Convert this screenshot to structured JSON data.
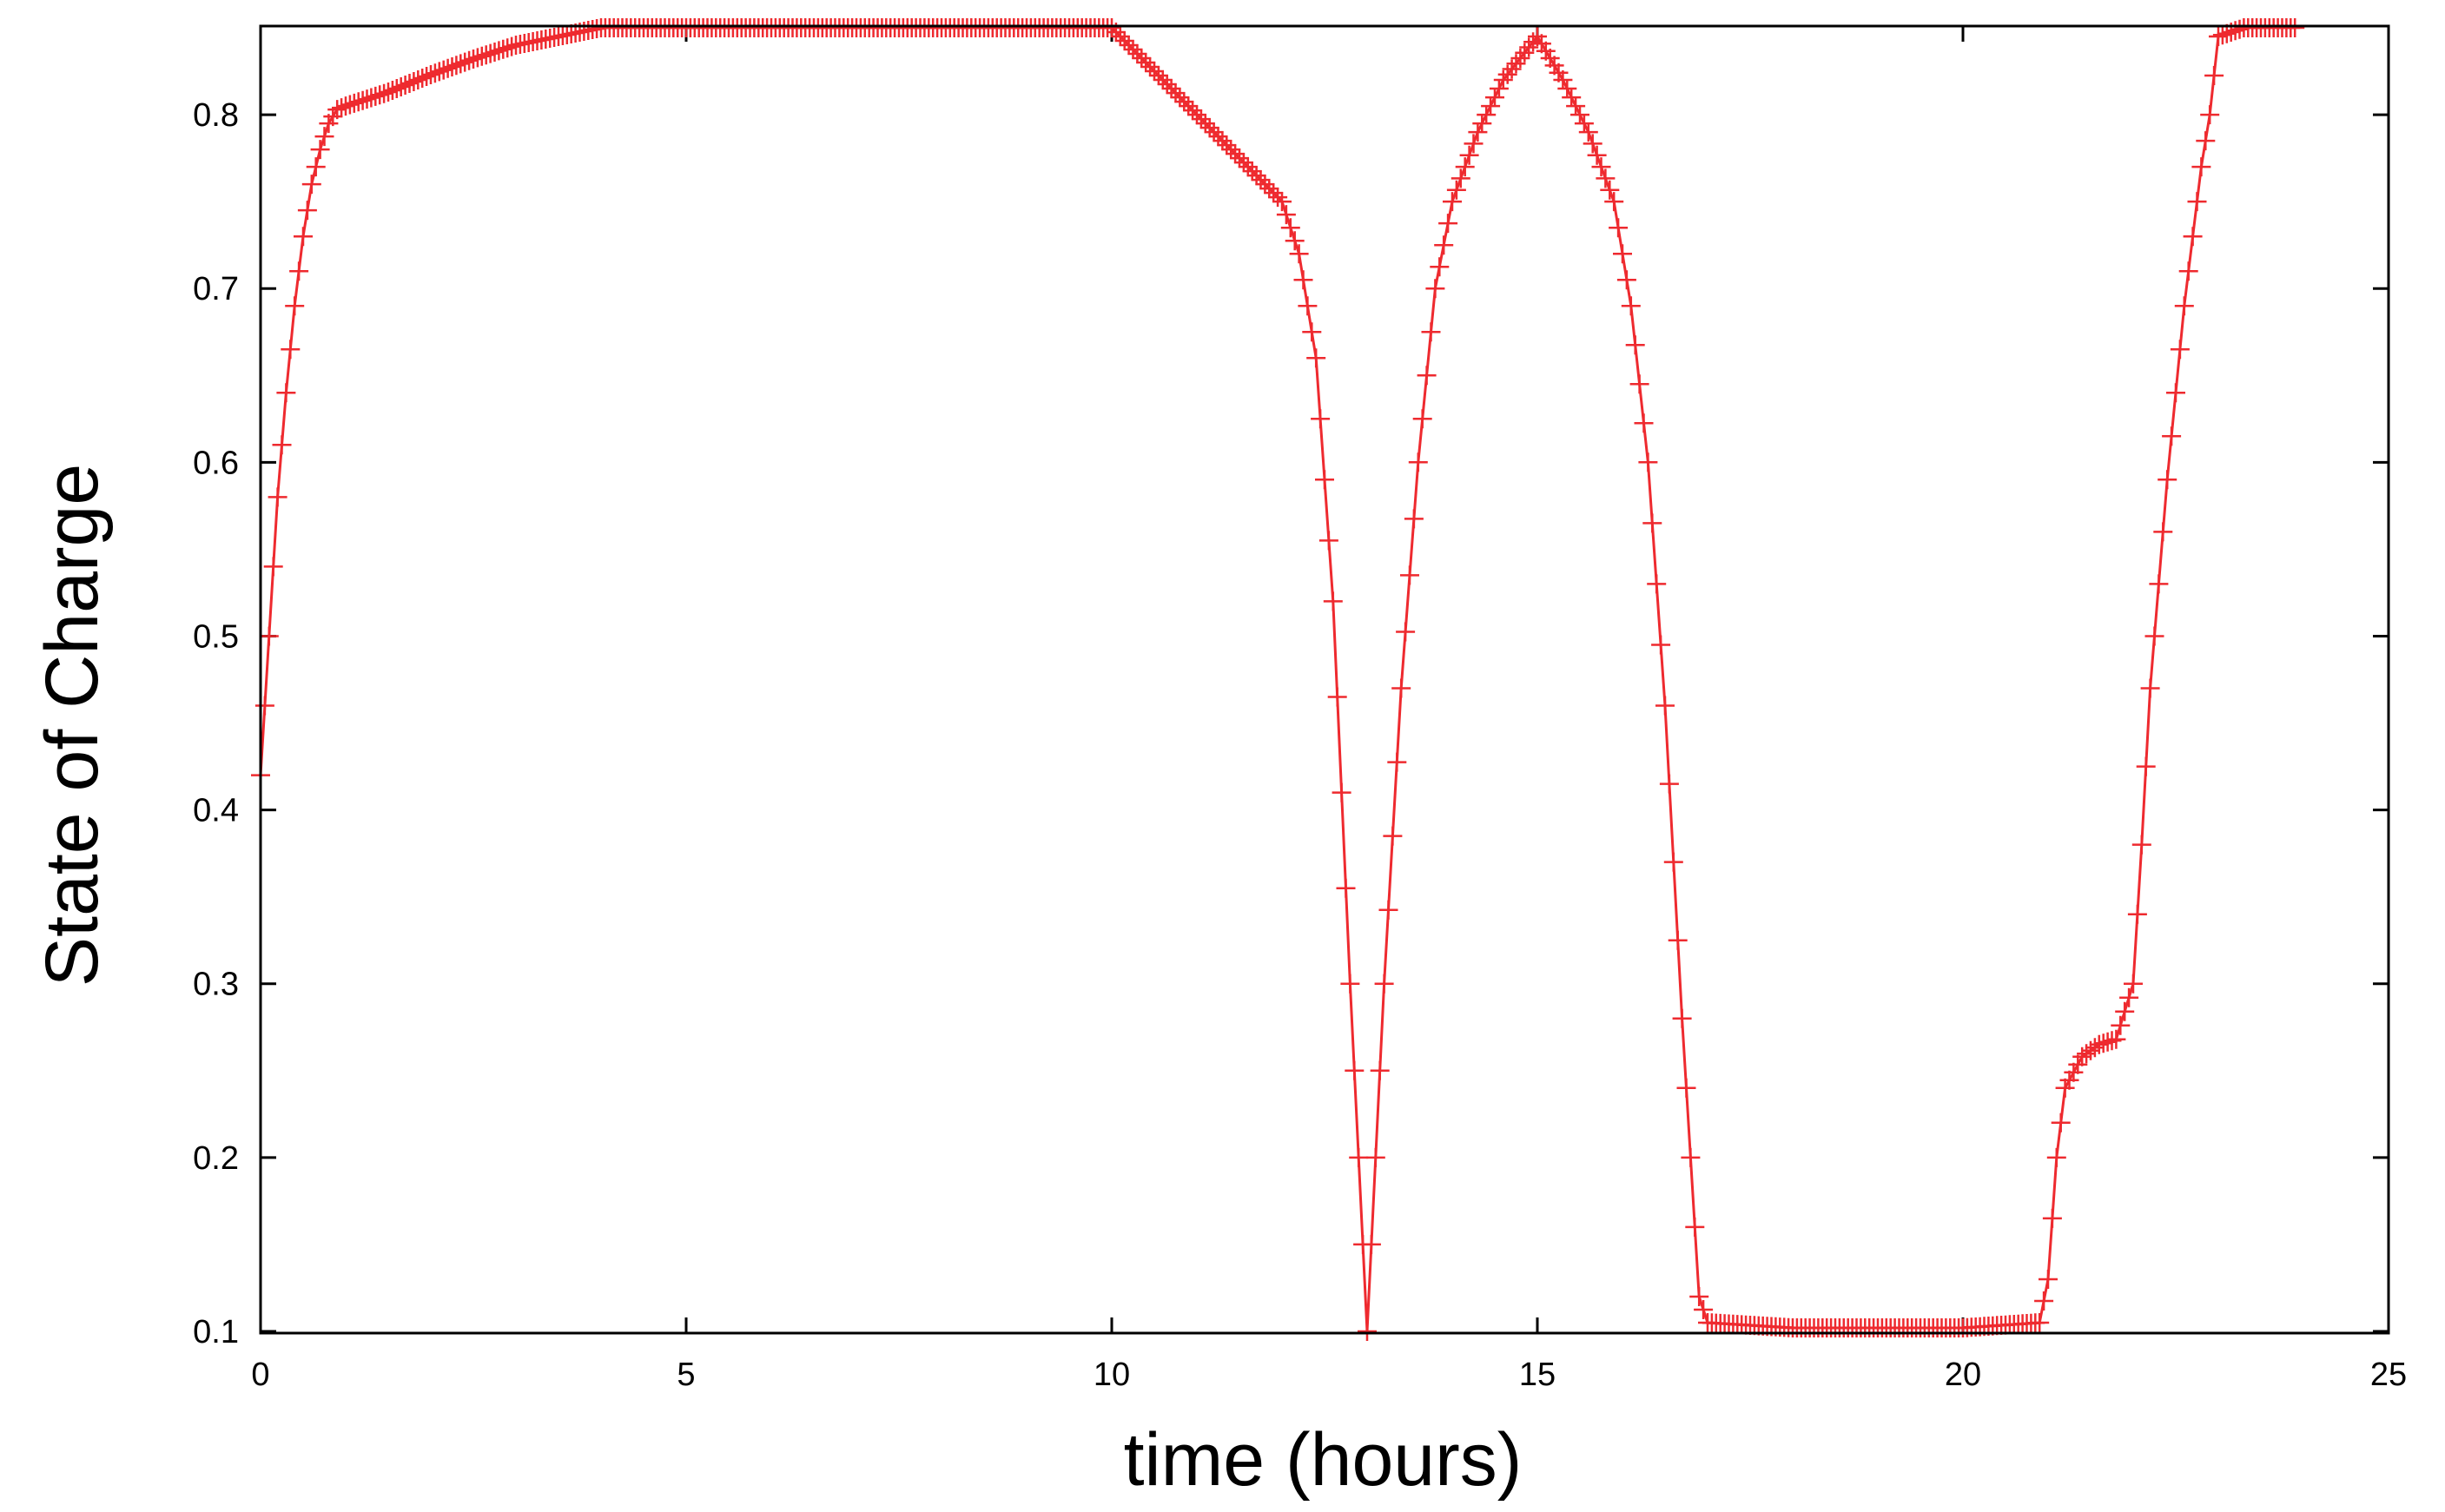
{
  "chart_data": {
    "type": "line",
    "title": "",
    "xlabel": "time (hours)",
    "ylabel": "State of Charge",
    "xlim": [
      0,
      25
    ],
    "ylim": [
      0.1,
      0.85
    ],
    "xticks": [
      0,
      5,
      10,
      15,
      20,
      25
    ],
    "yticks": [
      0.1,
      0.2,
      0.3,
      0.4,
      0.5,
      0.6,
      0.7,
      0.8
    ],
    "xtick_labels": [
      "0",
      "5",
      "10",
      "15",
      "20",
      "25"
    ],
    "ytick_labels": [
      "0.1",
      "0.2",
      "0.3",
      "0.4",
      "0.5",
      "0.6",
      "0.7",
      "0.8"
    ],
    "grid": false,
    "legend": "none",
    "series": [
      {
        "color": "#ee2a2f",
        "marker": "plus",
        "x": [
          0.0,
          0.1,
          0.2,
          0.3,
          0.4,
          0.5,
          0.6,
          0.7,
          0.8,
          0.9,
          1.0,
          1.5,
          2.0,
          2.5,
          3.0,
          3.5,
          4.0,
          5.0,
          6.0,
          7.0,
          8.0,
          9.0,
          10.0,
          10.5,
          11.0,
          11.5,
          12.0,
          12.2,
          12.4,
          12.6,
          12.8,
          13.0,
          13.2,
          13.4,
          13.6,
          13.8,
          14.0,
          14.3,
          14.6,
          15.0,
          15.3,
          15.6,
          15.9,
          16.1,
          16.3,
          16.5,
          16.7,
          16.9,
          17.0,
          18.0,
          19.0,
          20.0,
          20.9,
          21.0,
          21.1,
          21.2,
          21.4,
          21.6,
          21.8,
          22.0,
          22.1,
          22.2,
          22.3,
          22.4,
          22.5,
          22.6,
          22.7,
          22.8,
          22.9,
          23.0,
          23.3,
          23.6,
          23.9
        ],
        "y": [
          0.42,
          0.5,
          0.58,
          0.64,
          0.69,
          0.73,
          0.76,
          0.78,
          0.795,
          0.803,
          0.805,
          0.813,
          0.823,
          0.832,
          0.84,
          0.845,
          0.85,
          0.85,
          0.85,
          0.85,
          0.85,
          0.85,
          0.85,
          0.825,
          0.8,
          0.775,
          0.75,
          0.72,
          0.66,
          0.52,
          0.3,
          0.1,
          0.3,
          0.47,
          0.6,
          0.7,
          0.75,
          0.79,
          0.82,
          0.845,
          0.82,
          0.79,
          0.75,
          0.69,
          0.6,
          0.46,
          0.28,
          0.12,
          0.105,
          0.102,
          0.102,
          0.102,
          0.105,
          0.13,
          0.2,
          0.24,
          0.258,
          0.265,
          0.268,
          0.3,
          0.38,
          0.47,
          0.53,
          0.59,
          0.64,
          0.69,
          0.73,
          0.77,
          0.8,
          0.845,
          0.85,
          0.85,
          0.85
        ]
      }
    ]
  }
}
